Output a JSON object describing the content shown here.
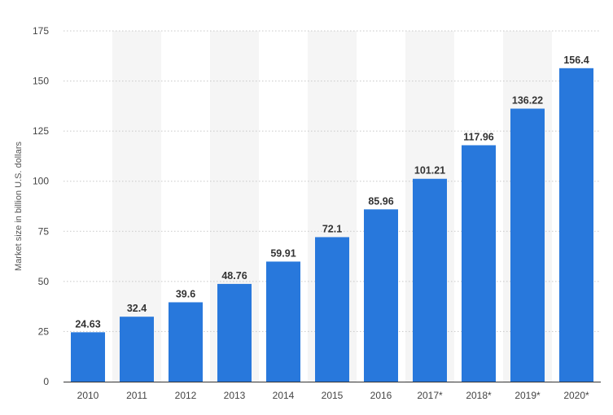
{
  "chart_data": {
    "type": "bar",
    "title": "",
    "xlabel": "",
    "ylabel": "Market size in billion U.S. dollars",
    "categories": [
      "2010",
      "2011",
      "2012",
      "2013",
      "2014",
      "2015",
      "2016",
      "2017*",
      "2018*",
      "2019*",
      "2020*"
    ],
    "values": [
      24.63,
      32.4,
      39.6,
      48.76,
      59.91,
      72.1,
      85.96,
      101.21,
      117.96,
      136.22,
      156.4
    ],
    "value_labels": [
      "24.63",
      "32.4",
      "39.6",
      "48.76",
      "59.91",
      "72.1",
      "85.96",
      "101.21",
      "117.96",
      "136.22",
      "156.4"
    ],
    "ylim": [
      0,
      175
    ],
    "yticks": [
      "0",
      "25",
      "50",
      "75",
      "100",
      "125",
      "150",
      "175"
    ],
    "grid": "horizontal dotted",
    "alternating_column_shading": true,
    "colors": {
      "bar": "#2878dc",
      "grid": "#c8c8c8",
      "shade": "#f5f5f5",
      "axis": "#333333"
    }
  }
}
